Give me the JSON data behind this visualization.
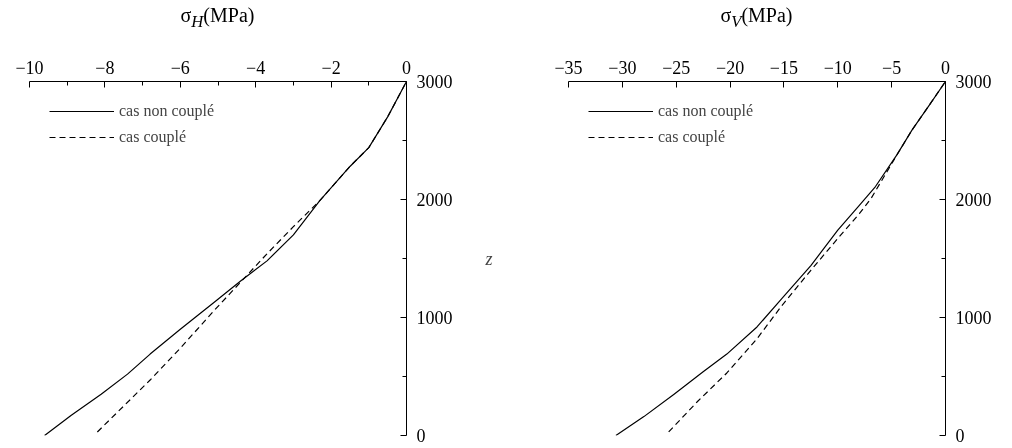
{
  "chart_data": [
    {
      "type": "line",
      "xlabel": "σ$_{H}$(MPa)",
      "ylabel": "z",
      "xlim": [
        -10,
        0
      ],
      "ylim": [
        0,
        3000
      ],
      "xticks": [
        -10,
        {
          "value": -9,
          "label": null
        },
        -8,
        {
          "value": -7,
          "label": null
        },
        -6,
        {
          "value": -5,
          "label": null
        },
        -4,
        {
          "value": -3,
          "label": null
        },
        -2,
        {
          "value": -1,
          "label": null
        },
        0
      ],
      "yticks": [
        0,
        {
          "value": 500,
          "label": null
        },
        1000,
        {
          "value": 1500,
          "label": null
        },
        2000,
        {
          "value": 2500,
          "label": null
        },
        3000
      ],
      "grid": false,
      "legend": "top left",
      "series": [
        {
          "name": "cas non couplé",
          "color": "#000000",
          "line_style": "solid",
          "x": [
            -9.6,
            -8.9,
            -8.1,
            -7.4,
            -6.8,
            -6.0,
            -5.1,
            -4.4,
            -3.7,
            -3.0,
            -2.3,
            -1.5,
            -1.0,
            -0.5,
            0
          ],
          "values": [
            0,
            170,
            350,
            520,
            690,
            900,
            1130,
            1310,
            1480,
            1700,
            1990,
            2280,
            2440,
            2700,
            3000
          ]
        },
        {
          "name": "cas couplé",
          "color": "#000000",
          "line_style": "dashed",
          "x": [
            -8.2,
            -7.5,
            -6.8,
            -6.0,
            -5.1,
            -4.4,
            -3.7,
            -3.0,
            -2.3,
            -1.5,
            -1.0,
            -0.5,
            0
          ],
          "values": [
            30,
            250,
            470,
            740,
            1060,
            1300,
            1540,
            1770,
            1990,
            2280,
            2440,
            2700,
            3000
          ]
        }
      ]
    },
    {
      "type": "line",
      "xlabel": "σ$_{V}$(MPa)",
      "xlim": [
        -35,
        0
      ],
      "ylim": [
        0,
        3000
      ],
      "xticks": [
        -35,
        -30,
        -25,
        -20,
        -15,
        -10,
        -5,
        0
      ],
      "yticks": [
        0,
        {
          "value": 500,
          "label": null
        },
        1000,
        {
          "value": 1500,
          "label": null
        },
        2000,
        {
          "value": 2500,
          "label": null
        },
        3000
      ],
      "grid": false,
      "legend": "top left",
      "series": [
        {
          "name": "cas non couplé",
          "color": "#000000",
          "line_style": "solid",
          "x": [
            -30.6,
            -28.0,
            -25.2,
            -22.5,
            -20.3,
            -17.5,
            -15.2,
            -12.5,
            -10.0,
            -8.0,
            -6.5,
            -4.5,
            -3.1,
            -1.5,
            0
          ],
          "values": [
            0,
            160,
            350,
            540,
            690,
            920,
            1160,
            1440,
            1740,
            1950,
            2110,
            2380,
            2590,
            2800,
            3000
          ]
        },
        {
          "name": "cas couplé",
          "color": "#000000",
          "line_style": "dashed",
          "x": [
            -25.7,
            -23.0,
            -20.3,
            -17.5,
            -15.2,
            -12.5,
            -10.0,
            -8.0,
            -6.9,
            -4.5,
            -3.1,
            -1.5,
            0
          ],
          "values": [
            30,
            290,
            530,
            820,
            1100,
            1400,
            1670,
            1880,
            2010,
            2380,
            2590,
            2800,
            3000
          ]
        }
      ]
    }
  ]
}
